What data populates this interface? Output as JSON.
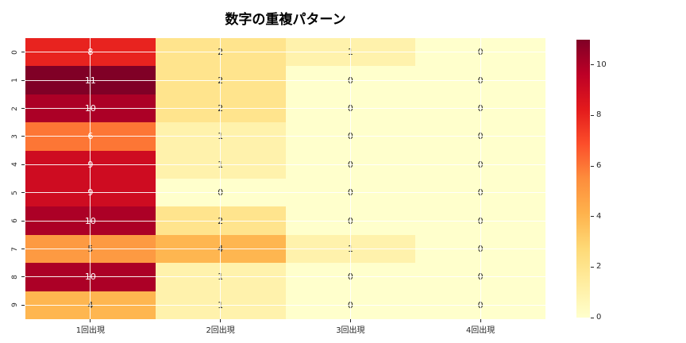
{
  "title": "数字の重複パターン",
  "chart_data": {
    "type": "heatmap",
    "title": "数字の重複パターン",
    "rows": [
      "0",
      "1",
      "2",
      "3",
      "4",
      "5",
      "6",
      "7",
      "8",
      "9"
    ],
    "columns": [
      "1回出現",
      "2回出現",
      "3回出現",
      "4回出現"
    ],
    "values": [
      [
        8,
        2,
        1,
        0
      ],
      [
        11,
        2,
        0,
        0
      ],
      [
        10,
        2,
        0,
        0
      ],
      [
        6,
        1,
        0,
        0
      ],
      [
        9,
        1,
        0,
        0
      ],
      [
        9,
        0,
        0,
        0
      ],
      [
        10,
        2,
        0,
        0
      ],
      [
        5,
        4,
        1,
        0
      ],
      [
        10,
        1,
        0,
        0
      ],
      [
        4,
        1,
        0,
        0
      ]
    ],
    "vmin": 0,
    "vmax": 11,
    "colormap": "YlOrRd",
    "colormap_anchors": [
      "#ffffcc",
      "#ffeda0",
      "#fed976",
      "#feb24c",
      "#fd8d3c",
      "#fc4e2a",
      "#e31a1c",
      "#bd0026",
      "#800026"
    ],
    "colorbar_ticks": [
      0,
      2,
      4,
      6,
      8,
      10
    ],
    "grid": true,
    "grid_color": "#ffffff",
    "annotation_color_light": "#ffffff",
    "annotation_color_dark": "#262626",
    "legend_position": "right-colorbar"
  }
}
